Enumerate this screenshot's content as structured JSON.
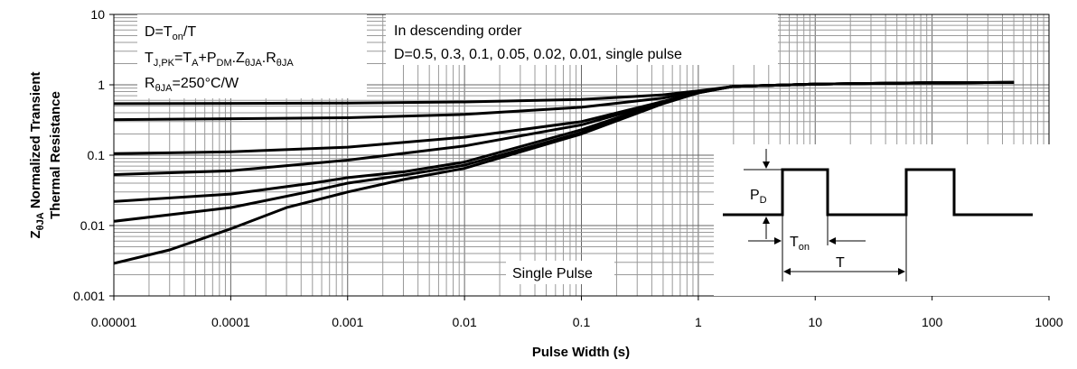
{
  "chart_data": {
    "type": "line",
    "xscale": "log",
    "yscale": "log",
    "xlim": [
      1e-05,
      1000
    ],
    "ylim": [
      0.001,
      10
    ],
    "grid": true,
    "xlabel": "Pulse Width (s)",
    "ylabel_line1": "Z",
    "ylabel_sub": "θJA",
    "ylabel_line1_rest": " Normalized Transient",
    "ylabel_line2": "Thermal Resistance",
    "x_tick_labels": [
      "0.00001",
      "0.0001",
      "0.001",
      "0.01",
      "0.1",
      "1",
      "10",
      "100",
      "1000"
    ],
    "y_tick_labels": [
      "0.001",
      "0.01",
      "0.1",
      "1",
      "10"
    ],
    "annotations": {
      "box1_line1": {
        "a": "D=T",
        "sub": "on",
        "b": "/T"
      },
      "box1_line2": {
        "parts": [
          {
            "t": "T",
            "sub": false
          },
          {
            "t": "J,PK",
            "sub": true
          },
          {
            "t": "=T",
            "sub": false
          },
          {
            "t": "A",
            "sub": true
          },
          {
            "t": "+P",
            "sub": false
          },
          {
            "t": "DM",
            "sub": true
          },
          {
            "t": ".Z",
            "sub": false
          },
          {
            "t": "θJA",
            "sub": true
          },
          {
            "t": ".R",
            "sub": false
          },
          {
            "t": "θJA",
            "sub": true
          }
        ]
      },
      "box1_line3": {
        "a": "R",
        "sub": "θJA",
        "b": "=250°C/W"
      },
      "box2_line1": "In descending order",
      "box2_line2": "D=0.5, 0.3, 0.1, 0.05, 0.02, 0.01, single pulse",
      "single_pulse_label": "Single Pulse",
      "inset_pd": {
        "a": "P",
        "sub": "D"
      },
      "inset_ton": {
        "a": "T",
        "sub": "on"
      },
      "inset_t": "T"
    },
    "series": [
      {
        "x": [
          1e-05,
          0.0001,
          0.001,
          0.01,
          0.1,
          0.5,
          1,
          2,
          10,
          100,
          500
        ],
        "y": [
          0.54,
          0.545,
          0.55,
          0.57,
          0.62,
          0.72,
          0.82,
          0.95,
          1.02,
          1.07,
          1.08
        ]
      },
      {
        "x": [
          1e-05,
          0.0001,
          0.001,
          0.01,
          0.1,
          0.5,
          1,
          2,
          10,
          100,
          500
        ],
        "y": [
          0.32,
          0.33,
          0.34,
          0.38,
          0.48,
          0.65,
          0.8,
          0.95,
          1.02,
          1.07,
          1.08
        ]
      },
      {
        "x": [
          1e-05,
          3e-05,
          0.0001,
          0.001,
          0.01,
          0.1,
          0.5,
          1,
          2,
          10,
          100,
          500
        ],
        "y": [
          0.105,
          0.108,
          0.112,
          0.13,
          0.18,
          0.3,
          0.58,
          0.78,
          0.95,
          1.02,
          1.07,
          1.08
        ]
      },
      {
        "x": [
          1e-05,
          0.0001,
          0.001,
          0.01,
          0.1,
          0.5,
          1,
          2,
          10,
          100,
          500
        ],
        "y": [
          0.053,
          0.06,
          0.085,
          0.135,
          0.27,
          0.57,
          0.78,
          0.95,
          1.02,
          1.07,
          1.08
        ]
      },
      {
        "x": [
          1e-05,
          0.0001,
          0.0005,
          0.001,
          0.003,
          0.01,
          0.1,
          0.5,
          1,
          2,
          10,
          100,
          500
        ],
        "y": [
          0.022,
          0.028,
          0.04,
          0.048,
          0.058,
          0.08,
          0.23,
          0.56,
          0.78,
          0.95,
          1.02,
          1.07,
          1.08
        ]
      },
      {
        "x": [
          1e-05,
          0.0001,
          0.0005,
          0.001,
          0.003,
          0.01,
          0.1,
          0.5,
          1,
          2,
          10,
          100,
          500
        ],
        "y": [
          0.0115,
          0.018,
          0.031,
          0.04,
          0.052,
          0.072,
          0.21,
          0.55,
          0.77,
          0.95,
          1.02,
          1.07,
          1.08
        ]
      },
      {
        "x": [
          1e-05,
          3e-05,
          0.0001,
          0.0003,
          0.001,
          0.003,
          0.01,
          0.1,
          0.5,
          1,
          2,
          10,
          100,
          500
        ],
        "y": [
          0.0029,
          0.0045,
          0.009,
          0.018,
          0.03,
          0.045,
          0.065,
          0.2,
          0.54,
          0.77,
          0.95,
          1.02,
          1.07,
          1.08
        ]
      }
    ]
  }
}
